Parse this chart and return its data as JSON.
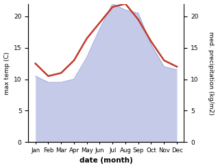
{
  "months": [
    "Jan",
    "Feb",
    "Mar",
    "Apr",
    "May",
    "Jun",
    "Jul",
    "Aug",
    "Sep",
    "Oct",
    "Nov",
    "Dec"
  ],
  "max_temp": [
    12.5,
    10.5,
    11.0,
    13.0,
    16.5,
    19.0,
    21.5,
    22.0,
    19.5,
    16.0,
    13.0,
    12.0
  ],
  "precipitation": [
    10.5,
    9.5,
    9.5,
    10.0,
    13.5,
    18.0,
    22.0,
    21.0,
    20.5,
    15.5,
    12.0,
    11.5
  ],
  "temp_color": "#c0392b",
  "precip_fill_color": "#c5cae9",
  "precip_line_color": "#9fa8da",
  "temp_ylim": [
    0,
    22
  ],
  "precip_ylim": [
    0,
    22
  ],
  "temp_yticks": [
    0,
    5,
    10,
    15,
    20
  ],
  "precip_yticks": [
    0,
    5,
    10,
    15,
    20
  ],
  "xlabel": "date (month)",
  "ylabel_left": "max temp (C)",
  "ylabel_right": "med. precipitation (kg/m2)",
  "background_color": "#ffffff",
  "plot_bg_color": "#ffffff"
}
